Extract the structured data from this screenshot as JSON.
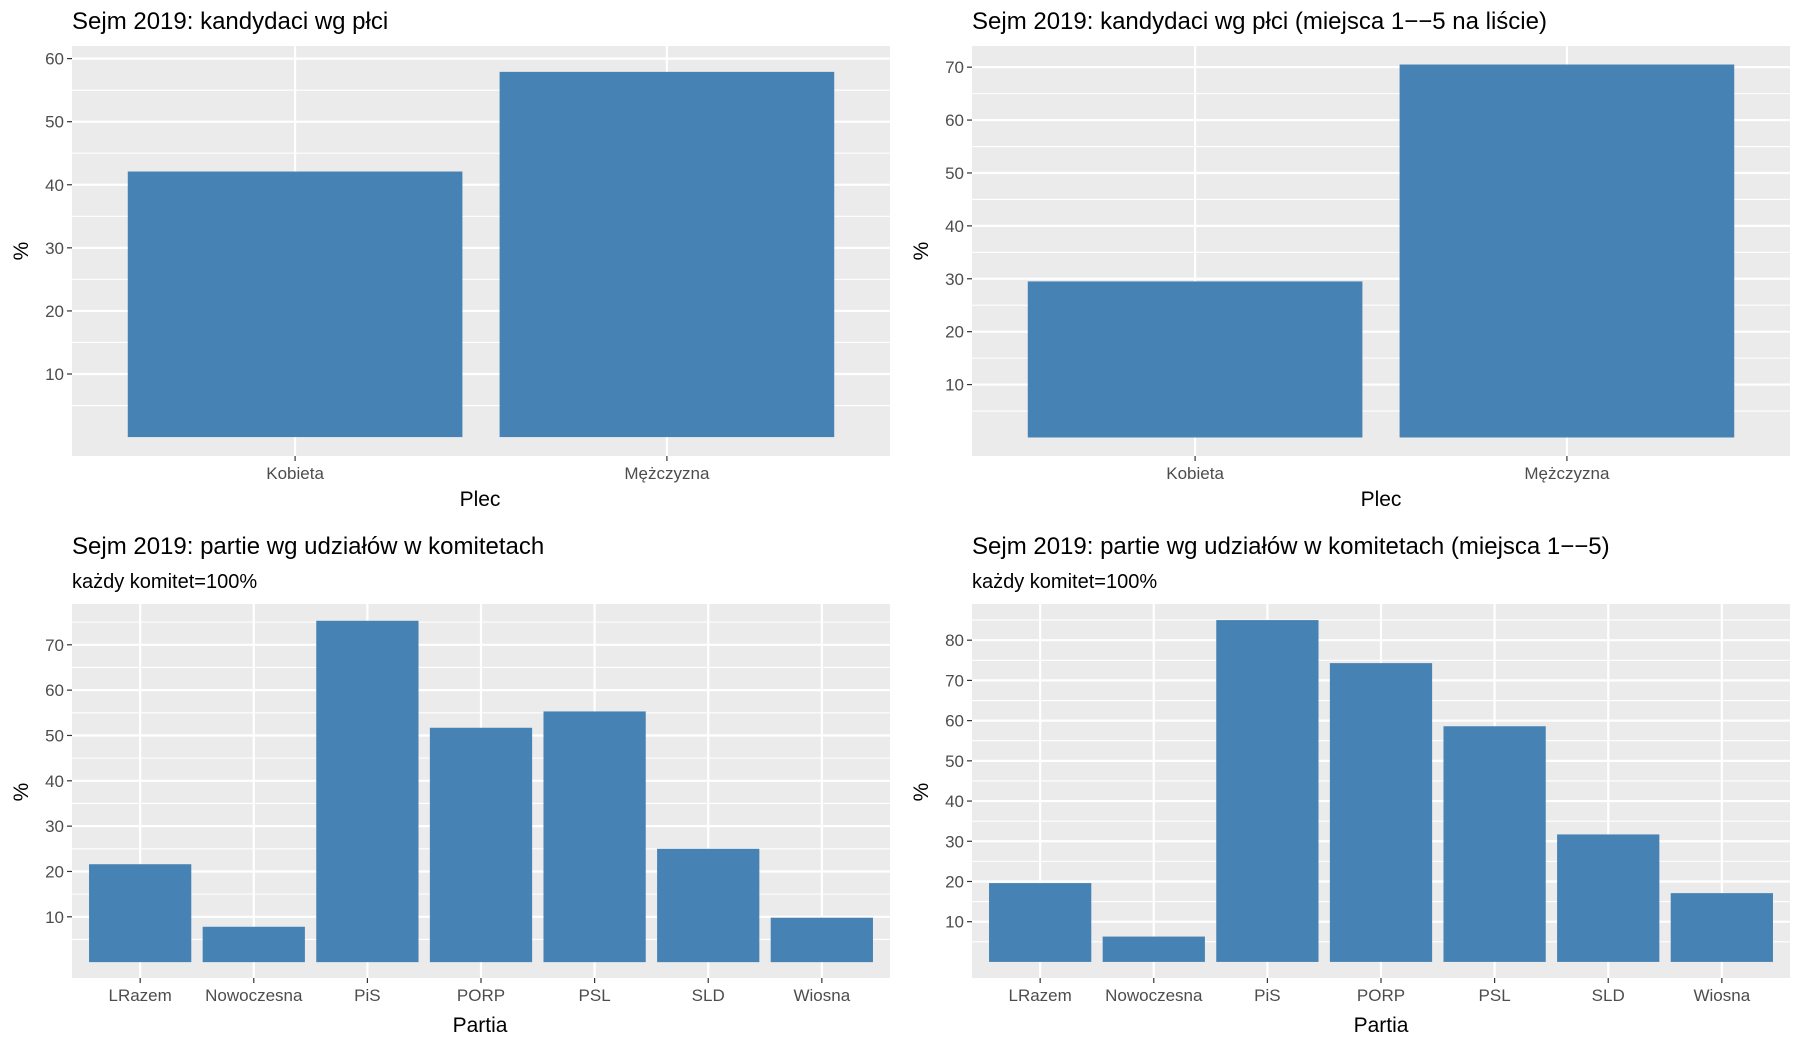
{
  "chart_data": [
    {
      "type": "bar",
      "title": "Sejm 2019: kandydaci wg płci",
      "subtitle": "",
      "xlabel": "Plec",
      "ylabel": "%",
      "categories": [
        "Kobieta",
        "Mężczyzna"
      ],
      "values": [
        42.1,
        57.9
      ],
      "ylim": [
        -3,
        62
      ],
      "yticks": [
        10,
        20,
        30,
        40,
        50,
        60
      ],
      "grid": true,
      "color": "#4682b4"
    },
    {
      "type": "bar",
      "title": "Sejm 2019: kandydaci wg płci (miejsca 1−−5 na liście)",
      "subtitle": "",
      "xlabel": "Plec",
      "ylabel": "%",
      "categories": [
        "Kobieta",
        "Mężczyzna"
      ],
      "values": [
        29.5,
        70.5
      ],
      "ylim": [
        -3.5,
        74
      ],
      "yticks": [
        10,
        20,
        30,
        40,
        50,
        60,
        70
      ],
      "grid": true,
      "color": "#4682b4"
    },
    {
      "type": "bar",
      "title": "Sejm 2019: partie wg udziałów w komitetach",
      "subtitle": "każdy komitet=100%",
      "xlabel": "Partia",
      "ylabel": "%",
      "categories": [
        "LRazem",
        "Nowoczesna",
        "PiS",
        "PORP",
        "PSL",
        "SLD",
        "Wiosna"
      ],
      "values": [
        21.6,
        7.8,
        75.3,
        51.7,
        55.3,
        25.0,
        9.8
      ],
      "ylim": [
        -3.5,
        79
      ],
      "yticks": [
        10,
        20,
        30,
        40,
        50,
        60,
        70
      ],
      "grid": true,
      "color": "#4682b4"
    },
    {
      "type": "bar",
      "title": "Sejm 2019: partie wg udziałów w komitetach (miejsca 1−−5)",
      "subtitle": "każdy komitet=100%",
      "xlabel": "Partia",
      "ylabel": "%",
      "categories": [
        "LRazem",
        "Nowoczesna",
        "PiS",
        "PORP",
        "PSL",
        "SLD",
        "Wiosna"
      ],
      "values": [
        19.6,
        6.3,
        85.0,
        74.3,
        58.6,
        31.7,
        17.1
      ],
      "ylim": [
        -4,
        89
      ],
      "yticks": [
        10,
        20,
        30,
        40,
        50,
        60,
        70,
        80
      ],
      "grid": true,
      "color": "#4682b4"
    }
  ]
}
